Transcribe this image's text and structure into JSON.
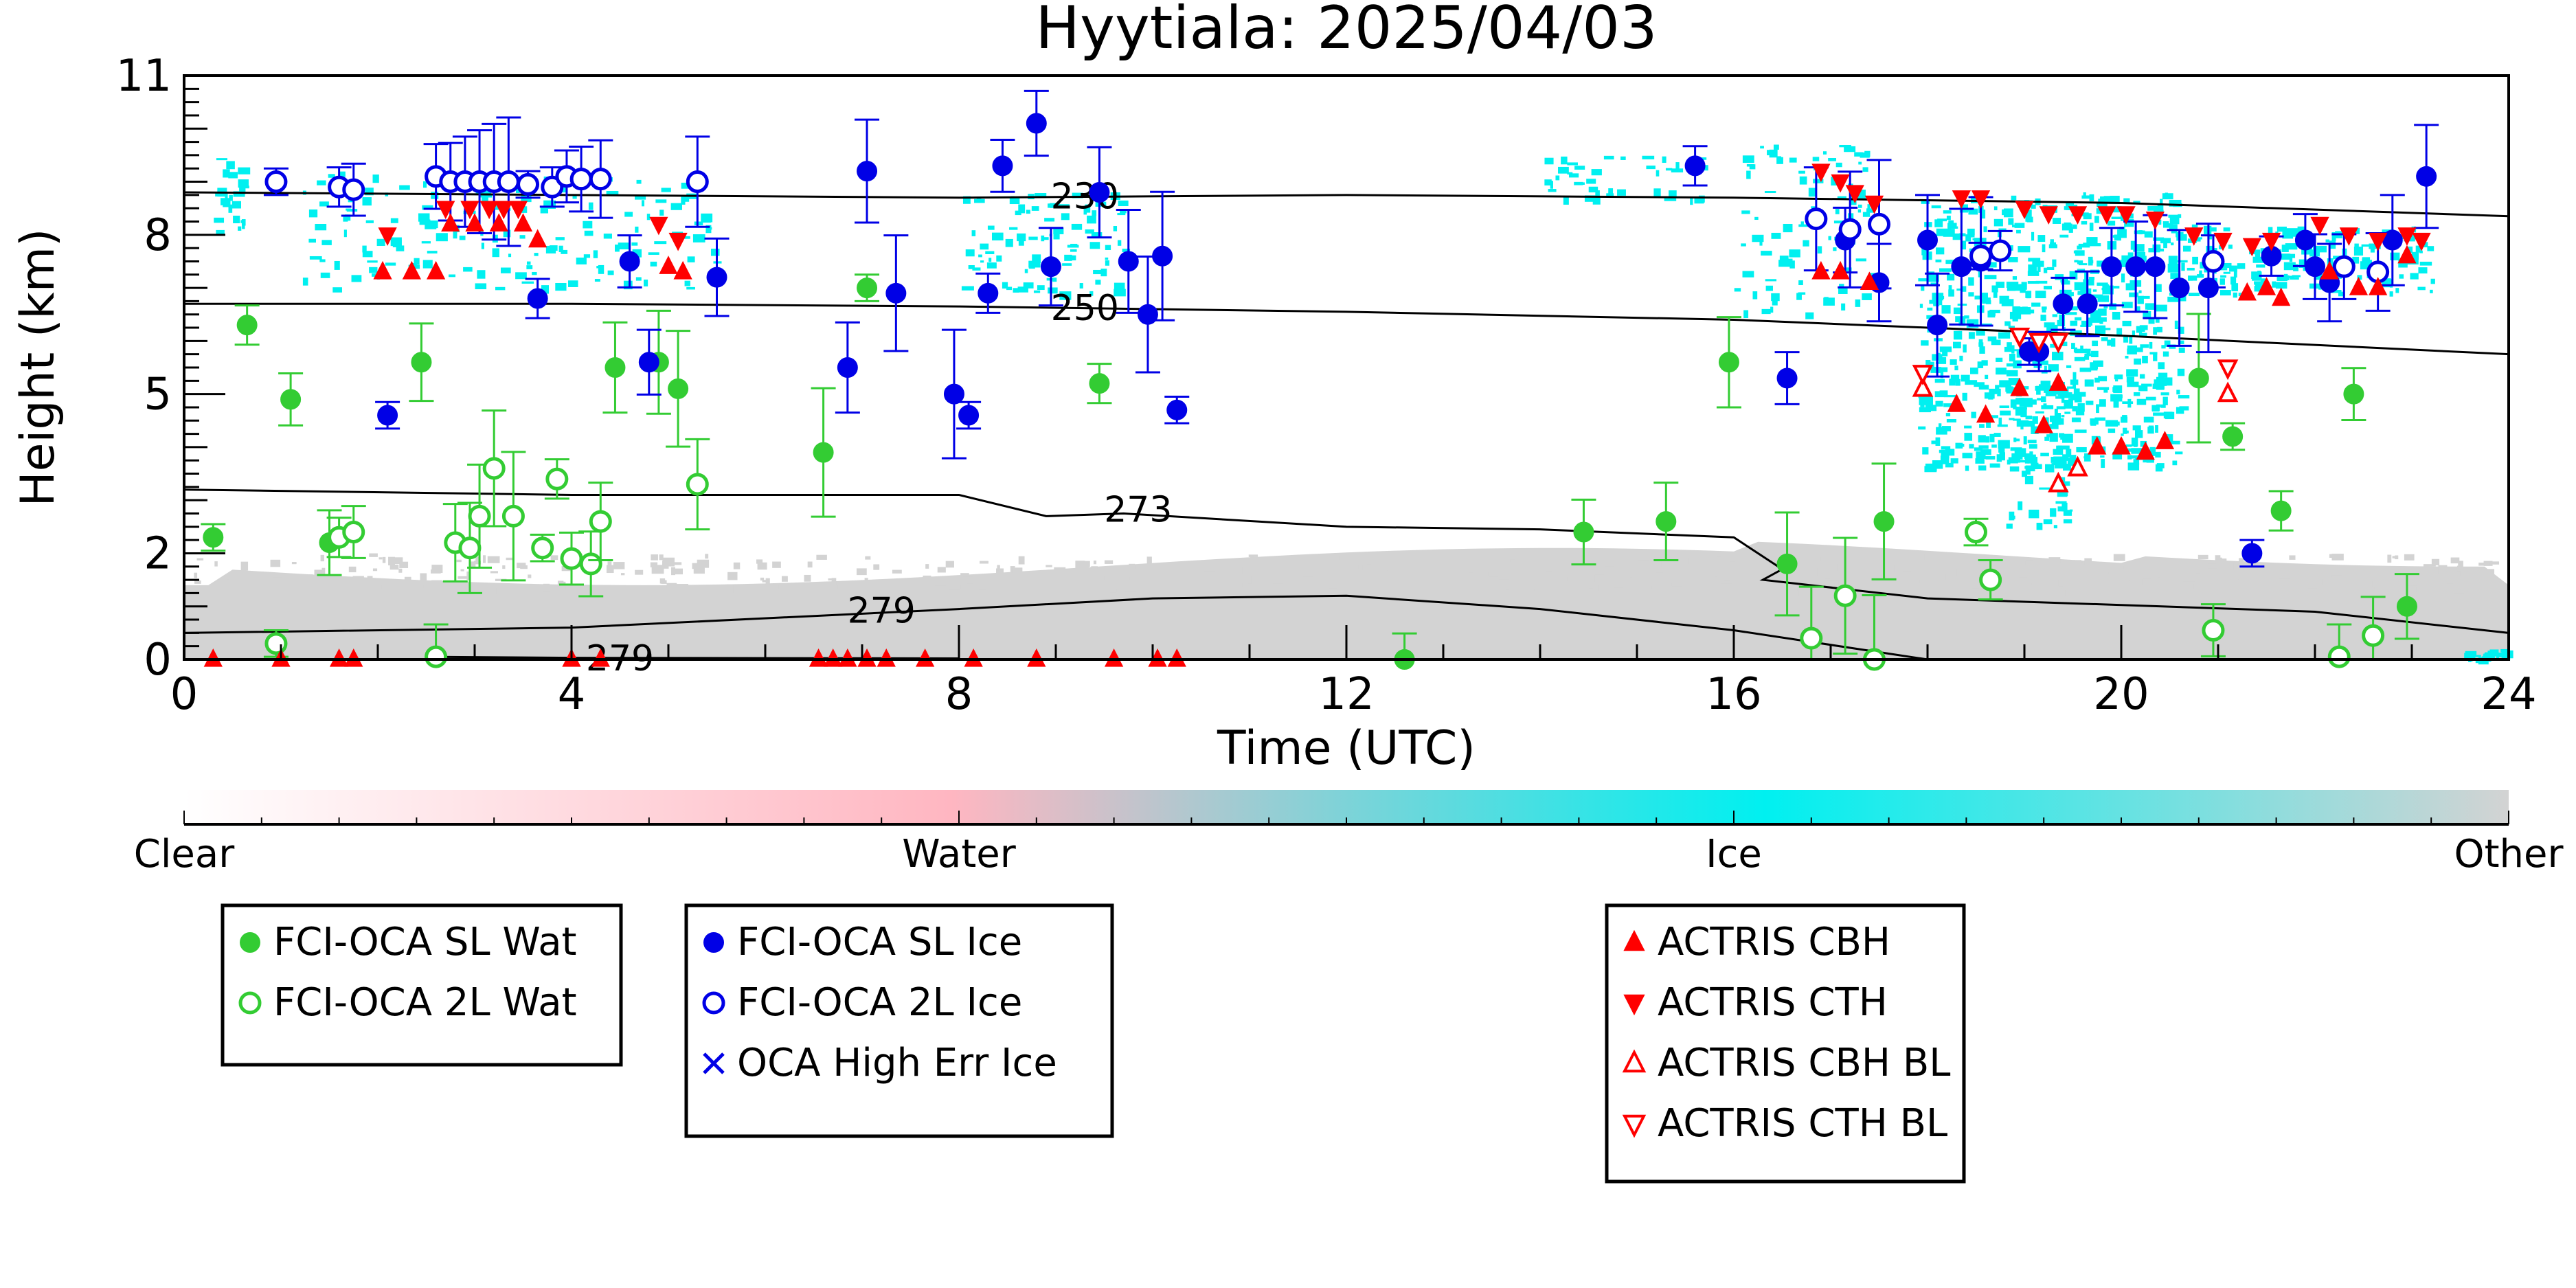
{
  "chart_data": {
    "type": "scatter",
    "title": "Hyytiala: 2025/04/03",
    "xlabel": "Time (UTC)",
    "ylabel": "Height (km)",
    "xlim": [
      0,
      24
    ],
    "ylim": [
      0,
      11
    ],
    "xticks": [
      "0",
      "4",
      "8",
      "12",
      "16",
      "20",
      "24"
    ],
    "yticks": [
      "0",
      "2",
      "5",
      "8",
      "11"
    ],
    "grid": false,
    "background_classes": {
      "labels": [
        "Clear",
        "Water",
        "Ice",
        "Other"
      ],
      "colors": [
        "#ffffff",
        "#ffb6c1",
        "#00f0f0",
        "#d3d3d3"
      ]
    },
    "isotherms": [
      {
        "label": "230",
        "x": [
          0,
          4,
          8,
          12,
          16,
          20,
          24
        ],
        "y": [
          8.8,
          8.75,
          8.7,
          8.75,
          8.7,
          8.6,
          8.35
        ]
      },
      {
        "label": "250",
        "x": [
          0,
          4,
          8,
          12,
          16,
          20,
          24
        ],
        "y": [
          6.7,
          6.7,
          6.65,
          6.55,
          6.4,
          6.1,
          5.75
        ]
      },
      {
        "label": "273",
        "x": [
          0,
          4,
          8,
          8.9,
          9.7,
          12,
          14,
          16,
          16.5,
          16.3,
          18,
          22,
          24
        ],
        "y": [
          3.2,
          3.1,
          3.1,
          2.7,
          2.75,
          2.5,
          2.45,
          2.3,
          1.7,
          1.5,
          1.15,
          0.9,
          0.5
        ]
      },
      {
        "label": "279",
        "x": [
          0,
          4,
          8,
          10,
          12,
          14,
          16,
          18
        ],
        "y": [
          0.5,
          0.6,
          0.95,
          1.15,
          1.2,
          0.95,
          0.55,
          0.0
        ]
      },
      {
        "label": "279",
        "x": [
          2.5,
          4,
          8
        ],
        "y": [
          0.05,
          0.03,
          0.02
        ]
      }
    ],
    "series": [
      {
        "name": "FCI-OCA SL Wat",
        "color": "#33cc33",
        "marker": "filled-circle",
        "points": [
          [
            0.3,
            2.3
          ],
          [
            0.65,
            6.3
          ],
          [
            1.1,
            4.9
          ],
          [
            1.5,
            2.2
          ],
          [
            2.45,
            5.6
          ],
          [
            4.45,
            5.5
          ],
          [
            4.9,
            5.6
          ],
          [
            5.1,
            5.1
          ],
          [
            6.6,
            3.9
          ],
          [
            7.05,
            7.0
          ],
          [
            9.45,
            5.2
          ],
          [
            12.6,
            0.0
          ],
          [
            14.45,
            2.4
          ],
          [
            15.3,
            2.6
          ],
          [
            15.95,
            5.6
          ],
          [
            16.55,
            1.8
          ],
          [
            17.55,
            2.6
          ],
          [
            20.8,
            5.3
          ],
          [
            21.15,
            4.2
          ],
          [
            21.65,
            2.8
          ],
          [
            22.4,
            5.0
          ],
          [
            22.95,
            1.0
          ]
        ]
      },
      {
        "name": "FCI-OCA 2L Wat",
        "color": "#33cc33",
        "marker": "open-circle",
        "points": [
          [
            0.95,
            0.3
          ],
          [
            1.6,
            2.3
          ],
          [
            1.75,
            2.4
          ],
          [
            2.6,
            0.05
          ],
          [
            2.8,
            2.2
          ],
          [
            2.95,
            2.1
          ],
          [
            3.05,
            2.7
          ],
          [
            3.2,
            3.6
          ],
          [
            3.4,
            2.7
          ],
          [
            3.7,
            2.1
          ],
          [
            3.85,
            3.4
          ],
          [
            4.0,
            1.9
          ],
          [
            4.2,
            1.8
          ],
          [
            4.3,
            2.6
          ],
          [
            5.3,
            3.3
          ],
          [
            16.8,
            0.4
          ],
          [
            17.15,
            1.2
          ],
          [
            17.45,
            0.0
          ],
          [
            18.5,
            2.4
          ],
          [
            18.65,
            1.5
          ],
          [
            20.95,
            0.55
          ],
          [
            22.25,
            0.05
          ],
          [
            22.6,
            0.45
          ]
        ]
      },
      {
        "name": "FCI-OCA SL Ice",
        "color": "#0000e6",
        "marker": "filled-circle",
        "points": [
          [
            2.1,
            4.6
          ],
          [
            3.65,
            6.8
          ],
          [
            4.6,
            7.5
          ],
          [
            4.8,
            5.6
          ],
          [
            5.5,
            7.2
          ],
          [
            6.85,
            5.5
          ],
          [
            7.05,
            9.2
          ],
          [
            7.35,
            6.9
          ],
          [
            7.95,
            5.0
          ],
          [
            8.1,
            4.6
          ],
          [
            8.3,
            6.9
          ],
          [
            8.45,
            9.3
          ],
          [
            8.8,
            10.1
          ],
          [
            8.95,
            7.4
          ],
          [
            9.45,
            8.8
          ],
          [
            9.75,
            7.5
          ],
          [
            9.95,
            6.5
          ],
          [
            10.1,
            7.6
          ],
          [
            10.25,
            4.7
          ],
          [
            15.6,
            9.3
          ],
          [
            16.55,
            5.3
          ],
          [
            17.15,
            7.9
          ],
          [
            17.5,
            7.1
          ],
          [
            18.0,
            7.9
          ],
          [
            18.1,
            6.3
          ],
          [
            18.35,
            7.4
          ],
          [
            18.55,
            7.5
          ],
          [
            19.05,
            5.8
          ],
          [
            19.15,
            5.8
          ],
          [
            19.4,
            6.7
          ],
          [
            19.65,
            6.7
          ],
          [
            19.9,
            7.4
          ],
          [
            20.15,
            7.4
          ],
          [
            20.35,
            7.4
          ],
          [
            20.6,
            7.0
          ],
          [
            20.9,
            7.0
          ],
          [
            21.35,
            2.0
          ],
          [
            21.55,
            7.6
          ],
          [
            21.9,
            7.9
          ],
          [
            22.0,
            7.4
          ],
          [
            22.15,
            7.1
          ],
          [
            22.8,
            7.9
          ],
          [
            23.15,
            9.1
          ]
        ]
      },
      {
        "name": "FCI-OCA 2L Ice",
        "color": "#0000e6",
        "marker": "open-circle",
        "points": [
          [
            0.95,
            9.0
          ],
          [
            1.6,
            8.9
          ],
          [
            1.75,
            8.85
          ],
          [
            2.6,
            9.1
          ],
          [
            2.75,
            9.0
          ],
          [
            2.9,
            9.0
          ],
          [
            3.05,
            9.0
          ],
          [
            3.2,
            9.0
          ],
          [
            3.35,
            9.0
          ],
          [
            3.55,
            8.95
          ],
          [
            3.8,
            8.9
          ],
          [
            3.95,
            9.1
          ],
          [
            4.1,
            9.05
          ],
          [
            4.3,
            9.05
          ],
          [
            5.3,
            9.0
          ],
          [
            16.85,
            8.3
          ],
          [
            17.2,
            8.1
          ],
          [
            17.5,
            8.2
          ],
          [
            18.55,
            7.6
          ],
          [
            18.75,
            7.7
          ],
          [
            20.95,
            7.5
          ],
          [
            22.3,
            7.4
          ],
          [
            22.65,
            7.3
          ]
        ]
      },
      {
        "name": "OCA High Err Ice",
        "color": "#0000e6",
        "marker": "x",
        "points": []
      },
      {
        "name": "ACTRIS CBH",
        "color": "#ff0000",
        "marker": "triangle-up",
        "points": [
          [
            0.3,
            0.0
          ],
          [
            1.0,
            0.0
          ],
          [
            1.6,
            0.0
          ],
          [
            1.75,
            0.0
          ],
          [
            2.05,
            7.3
          ],
          [
            2.35,
            7.3
          ],
          [
            2.6,
            7.3
          ],
          [
            2.75,
            8.2
          ],
          [
            3.0,
            8.2
          ],
          [
            3.25,
            8.2
          ],
          [
            3.5,
            8.2
          ],
          [
            3.65,
            7.9
          ],
          [
            4.0,
            0.0
          ],
          [
            4.3,
            0.0
          ],
          [
            5.0,
            7.4
          ],
          [
            5.15,
            7.3
          ],
          [
            6.55,
            0.0
          ],
          [
            6.7,
            0.0
          ],
          [
            6.85,
            0.0
          ],
          [
            7.05,
            0.0
          ],
          [
            7.25,
            0.0
          ],
          [
            7.65,
            0.0
          ],
          [
            8.15,
            0.0
          ],
          [
            8.8,
            0.0
          ],
          [
            9.6,
            0.0
          ],
          [
            10.05,
            0.0
          ],
          [
            10.25,
            0.0
          ],
          [
            16.9,
            7.3
          ],
          [
            17.1,
            7.3
          ],
          [
            17.4,
            7.1
          ],
          [
            18.3,
            4.8
          ],
          [
            18.6,
            4.6
          ],
          [
            18.95,
            5.1
          ],
          [
            19.2,
            4.4
          ],
          [
            19.35,
            5.2
          ],
          [
            19.75,
            4.0
          ],
          [
            20.0,
            4.0
          ],
          [
            20.25,
            3.9
          ],
          [
            20.45,
            4.1
          ],
          [
            21.3,
            6.9
          ],
          [
            21.5,
            7.0
          ],
          [
            21.65,
            6.8
          ],
          [
            22.15,
            7.3
          ],
          [
            22.45,
            7.0
          ],
          [
            22.65,
            7.0
          ],
          [
            22.95,
            7.6
          ]
        ]
      },
      {
        "name": "ACTRIS CTH",
        "color": "#ff0000",
        "marker": "triangle-down",
        "points": [
          [
            2.1,
            8.0
          ],
          [
            2.7,
            8.5
          ],
          [
            2.95,
            8.5
          ],
          [
            3.15,
            8.5
          ],
          [
            3.3,
            8.5
          ],
          [
            3.45,
            8.5
          ],
          [
            4.9,
            8.2
          ],
          [
            5.1,
            7.9
          ],
          [
            16.9,
            9.2
          ],
          [
            17.1,
            9.0
          ],
          [
            17.25,
            8.8
          ],
          [
            17.45,
            8.6
          ],
          [
            18.35,
            8.7
          ],
          [
            18.55,
            8.7
          ],
          [
            19.0,
            8.5
          ],
          [
            19.25,
            8.4
          ],
          [
            19.55,
            8.4
          ],
          [
            19.85,
            8.4
          ],
          [
            20.05,
            8.4
          ],
          [
            20.35,
            8.3
          ],
          [
            20.75,
            8.0
          ],
          [
            21.05,
            7.9
          ],
          [
            21.35,
            7.8
          ],
          [
            21.55,
            7.9
          ],
          [
            22.05,
            8.2
          ],
          [
            22.35,
            8.0
          ],
          [
            22.65,
            7.9
          ],
          [
            22.95,
            8.0
          ],
          [
            23.1,
            7.9
          ]
        ]
      },
      {
        "name": "ACTRIS CBH BL",
        "color": "#ff0000",
        "marker": "open-triangle-up",
        "points": [
          [
            17.95,
            5.1
          ],
          [
            19.35,
            3.3
          ],
          [
            19.55,
            3.6
          ],
          [
            21.1,
            5.0
          ]
        ]
      },
      {
        "name": "ACTRIS CTH BL",
        "color": "#ff0000",
        "marker": "open-triangle-down",
        "points": [
          [
            17.95,
            5.4
          ],
          [
            18.95,
            6.1
          ],
          [
            19.15,
            6.0
          ],
          [
            19.35,
            6.0
          ],
          [
            21.1,
            5.5
          ]
        ]
      }
    ]
  },
  "legends": [
    {
      "entries": [
        {
          "label": "FCI-OCA SL Wat",
          "marker": "filled-circle",
          "color": "#33cc33"
        },
        {
          "label": "FCI-OCA 2L Wat",
          "marker": "open-circle",
          "color": "#33cc33"
        }
      ]
    },
    {
      "entries": [
        {
          "label": "FCI-OCA SL Ice",
          "marker": "filled-circle",
          "color": "#0000e6"
        },
        {
          "label": "FCI-OCA 2L Ice",
          "marker": "open-circle",
          "color": "#0000e6"
        },
        {
          "label": "OCA High Err Ice",
          "marker": "x",
          "color": "#0000e6"
        }
      ]
    },
    {
      "entries": [
        {
          "label": "ACTRIS CBH",
          "marker": "triangle-up",
          "color": "#ff0000"
        },
        {
          "label": "ACTRIS CTH",
          "marker": "triangle-down",
          "color": "#ff0000"
        },
        {
          "label": "ACTRIS CBH BL",
          "marker": "open-triangle-up",
          "color": "#ff0000"
        },
        {
          "label": "ACTRIS CTH BL",
          "marker": "open-triangle-down",
          "color": "#ff0000"
        }
      ]
    }
  ]
}
